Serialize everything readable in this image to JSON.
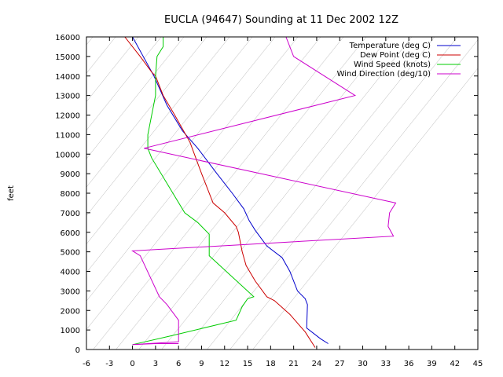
{
  "chart_data": {
    "type": "line",
    "title": "EUCLA (94647) Sounding at 11 Dec 2002 12Z",
    "xlabel": "",
    "ylabel": "feet",
    "xlim": [
      -6,
      45
    ],
    "ylim": [
      0,
      16000
    ],
    "xticks": [
      "-6",
      "-3",
      "0",
      "3",
      "6",
      "9",
      "12",
      "15",
      "18",
      "21",
      "24",
      "27",
      "30",
      "33",
      "36",
      "39",
      "42",
      "45"
    ],
    "yticks": [
      "0",
      "1000",
      "2000",
      "3000",
      "4000",
      "5000",
      "6000",
      "7000",
      "8000",
      "9000",
      "10000",
      "11000",
      "12000",
      "13000",
      "14000",
      "15000",
      "16000"
    ],
    "grid": "diagonal skew-T isotherms",
    "legend_position": "top-right",
    "series": [
      {
        "name": "Temperature (deg C)",
        "color": "#0000cc",
        "points": [
          [
            25.5,
            300
          ],
          [
            24.5,
            550
          ],
          [
            22.7,
            1100
          ],
          [
            22.8,
            2300
          ],
          [
            22.5,
            2600
          ],
          [
            21.5,
            3000
          ],
          [
            20.5,
            4000
          ],
          [
            19.5,
            4700
          ],
          [
            17.5,
            5300
          ],
          [
            16,
            6100
          ],
          [
            15.2,
            6600
          ],
          [
            14.5,
            7200
          ],
          [
            13,
            8000
          ],
          [
            11,
            9000
          ],
          [
            8.5,
            10300
          ],
          [
            6.5,
            11200
          ],
          [
            4.5,
            12500
          ],
          [
            2.8,
            14000
          ],
          [
            0,
            16000
          ]
        ]
      },
      {
        "name": "Dew Point (deg C)",
        "color": "#cc0000",
        "points": [
          [
            23.8,
            100
          ],
          [
            22.5,
            900
          ],
          [
            20.5,
            1800
          ],
          [
            18.5,
            2500
          ],
          [
            17.5,
            2700
          ],
          [
            16,
            3500
          ],
          [
            14.8,
            4300
          ],
          [
            14.3,
            5000
          ],
          [
            13.8,
            6000
          ],
          [
            13.5,
            6300
          ],
          [
            12,
            7000
          ],
          [
            10.5,
            7500
          ],
          [
            9,
            9000
          ],
          [
            7.5,
            10600
          ],
          [
            5.5,
            12000
          ],
          [
            4,
            13000
          ],
          [
            3,
            14000
          ],
          [
            2.5,
            14200
          ],
          [
            1,
            15000
          ],
          [
            -1,
            16000
          ]
        ]
      },
      {
        "name": "Wind Speed (knots)",
        "color": "#00cc00",
        "points": [
          [
            0,
            250
          ],
          [
            5,
            700
          ],
          [
            13.5,
            1500
          ],
          [
            14.3,
            2200
          ],
          [
            15,
            2600
          ],
          [
            15.8,
            2700
          ],
          [
            10,
            4800
          ],
          [
            10,
            5900
          ],
          [
            8.5,
            6500
          ],
          [
            6.8,
            7000
          ],
          [
            2.5,
            9800
          ],
          [
            2,
            10300
          ],
          [
            2,
            11000
          ],
          [
            3,
            13000
          ],
          [
            3,
            14000
          ],
          [
            3.2,
            15000
          ],
          [
            4,
            15500
          ],
          [
            4,
            16000
          ]
        ]
      },
      {
        "name": "Wind Direction (deg/10)",
        "color": "#cc00cc",
        "points": [
          [
            6,
            300
          ],
          [
            3,
            300
          ],
          [
            0,
            250
          ],
          [
            6,
            400
          ],
          [
            6,
            1500
          ],
          [
            4.5,
            2300
          ],
          [
            3.5,
            2700
          ],
          [
            1,
            4800
          ],
          [
            0,
            5050
          ],
          [
            34,
            5800
          ],
          [
            33.3,
            6300
          ],
          [
            33.5,
            7000
          ],
          [
            34.3,
            7500
          ],
          [
            1.5,
            10300
          ],
          [
            29,
            13000
          ],
          [
            21,
            15000
          ],
          [
            20,
            16000
          ]
        ]
      }
    ]
  }
}
